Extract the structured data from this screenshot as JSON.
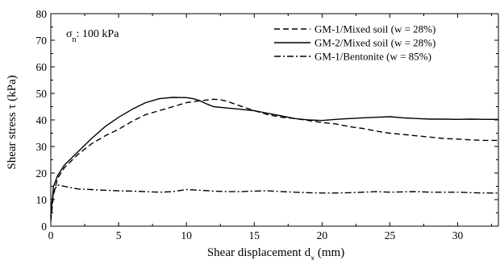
{
  "chart_data": {
    "type": "line",
    "title": "",
    "xlabel": "Shear displacement d",
    "xlabel_sub": "x",
    "xlabel_unit": " (mm)",
    "ylabel": "Shear stress τ (kPa)",
    "xlim": [
      0,
      33
    ],
    "ylim": [
      0,
      80
    ],
    "xticks": [
      0,
      5,
      10,
      15,
      20,
      25,
      30
    ],
    "yticks": [
      0,
      10,
      20,
      30,
      40,
      50,
      60,
      70,
      80
    ],
    "grid": false,
    "legend_position": "top-right",
    "annotation": {
      "symbol": "σ",
      "sub": "n",
      "text": ": 100 kPa"
    },
    "series": [
      {
        "name": "GM-1/Mixed soil (w = 28%)",
        "style": "dashed",
        "x": [
          0,
          0.2,
          0.5,
          1,
          1.5,
          2,
          3,
          4,
          5,
          6,
          7,
          8,
          9,
          10,
          11,
          12,
          12.5,
          13,
          14,
          15,
          16,
          17,
          18,
          19,
          20,
          21,
          22,
          23,
          24,
          25,
          26,
          27,
          28,
          29,
          30,
          31,
          32,
          33
        ],
        "y": [
          2,
          12,
          18,
          22,
          24.5,
          27,
          31,
          34,
          36.5,
          39.5,
          42,
          43.5,
          45,
          46.5,
          47.2,
          47.8,
          47.6,
          47,
          45.2,
          43.5,
          42,
          41,
          40.5,
          39.8,
          39,
          38.5,
          37.5,
          36.8,
          35.8,
          35,
          34.5,
          34,
          33.5,
          33,
          32.8,
          32.5,
          32.3,
          32.3
        ]
      },
      {
        "name": "GM-2/Mixed soil (w = 28%)",
        "style": "solid",
        "x": [
          0,
          0.2,
          0.5,
          1,
          1.5,
          2,
          3,
          4,
          5,
          6,
          7,
          8,
          9,
          10,
          10.5,
          11,
          11.5,
          12,
          13,
          14,
          15,
          16,
          17,
          18,
          19,
          20,
          21,
          22,
          23,
          24,
          25,
          26,
          27,
          28,
          29,
          30,
          31,
          32,
          33
        ],
        "y": [
          4,
          15,
          19,
          23,
          25.5,
          28,
          33,
          37.5,
          41,
          44,
          46.5,
          48,
          48.5,
          48.4,
          48,
          47.2,
          46,
          45,
          44.5,
          44,
          43.5,
          42.5,
          41.5,
          40.5,
          40,
          39.8,
          40.2,
          40.5,
          40.8,
          41,
          41.2,
          40.8,
          40.5,
          40.3,
          40.3,
          40.2,
          40.3,
          40.2,
          40.2
        ]
      },
      {
        "name": "GM-1/Bentonite (w = 85%)",
        "style": "dashdot",
        "x": [
          0,
          0.1,
          0.3,
          0.5,
          1,
          1.5,
          2,
          3,
          4,
          5,
          6,
          7,
          8,
          9,
          10,
          11,
          12,
          13,
          14,
          15,
          16,
          17,
          18,
          19,
          20,
          21,
          22,
          23,
          24,
          25,
          26,
          27,
          28,
          29,
          30,
          31,
          32,
          33
        ],
        "y": [
          3,
          10,
          14,
          15.5,
          15,
          14.5,
          14,
          13.8,
          13.5,
          13.3,
          13.2,
          13,
          12.8,
          13,
          13.8,
          13.5,
          13.2,
          13,
          13,
          13.2,
          13.3,
          13,
          12.8,
          12.6,
          12.5,
          12.5,
          12.6,
          12.8,
          13,
          12.8,
          12.9,
          13,
          12.8,
          12.8,
          12.8,
          12.6,
          12.5,
          12.5
        ]
      }
    ]
  }
}
